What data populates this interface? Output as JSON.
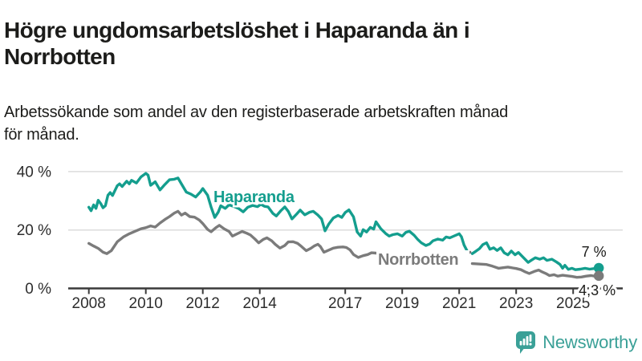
{
  "chart_data": {
    "type": "line",
    "title": "Högre ungdomsarbetslöshet i Haparanda än i Norrbotten",
    "subtitle": "Arbetssökande som andel av den registerbaserade arbetskraften månad för månad.",
    "unit": "%",
    "x_axis": {
      "ticks": [
        2008,
        2010,
        2012,
        2014,
        2017,
        2019,
        2021,
        2023,
        2025
      ],
      "range": [
        2007.3,
        2026.7
      ]
    },
    "y_axis": {
      "ticks": [
        0,
        20,
        40
      ],
      "tick_labels": [
        "0 %",
        "20 %",
        "40 %"
      ],
      "range": [
        0,
        44
      ],
      "grid": true
    },
    "legend_position": "inline-labels",
    "note": "both series have a visible data gap during 2021",
    "series": [
      {
        "name": "Haparanda",
        "color": "#149e8e",
        "end_label": "7 %",
        "end_value": 7.0,
        "points_segments": [
          [
            [
              2008.0,
              27.8
            ],
            [
              2008.08,
              26.6
            ],
            [
              2008.17,
              28.6
            ],
            [
              2008.25,
              27.4
            ],
            [
              2008.33,
              30.2
            ],
            [
              2008.42,
              29.0
            ],
            [
              2008.5,
              27.6
            ],
            [
              2008.58,
              28.3
            ],
            [
              2008.67,
              31.9
            ],
            [
              2008.75,
              32.8
            ],
            [
              2008.83,
              31.8
            ],
            [
              2009.0,
              35.2
            ],
            [
              2009.08,
              35.8
            ],
            [
              2009.17,
              34.9
            ],
            [
              2009.33,
              36.7
            ],
            [
              2009.42,
              35.8
            ],
            [
              2009.5,
              37.0
            ],
            [
              2009.67,
              36.1
            ],
            [
              2009.83,
              38.2
            ],
            [
              2010.0,
              39.4
            ],
            [
              2010.08,
              38.8
            ],
            [
              2010.17,
              35.3
            ],
            [
              2010.33,
              36.5
            ],
            [
              2010.5,
              33.7
            ],
            [
              2010.67,
              35.6
            ],
            [
              2010.83,
              37.2
            ],
            [
              2011.0,
              37.4
            ],
            [
              2011.13,
              37.8
            ],
            [
              2011.25,
              35.8
            ],
            [
              2011.42,
              33.0
            ],
            [
              2011.58,
              32.3
            ],
            [
              2011.75,
              31.3
            ],
            [
              2011.92,
              33.1
            ],
            [
              2012.0,
              34.2
            ],
            [
              2012.17,
              31.9
            ],
            [
              2012.29,
              27.9
            ],
            [
              2012.42,
              24.3
            ],
            [
              2012.54,
              26.1
            ],
            [
              2012.63,
              28.3
            ],
            [
              2012.79,
              27.4
            ],
            [
              2012.92,
              28.6
            ],
            [
              2013.08,
              28.1
            ],
            [
              2013.25,
              27.4
            ],
            [
              2013.42,
              26.2
            ],
            [
              2013.58,
              27.8
            ],
            [
              2013.75,
              28.4
            ],
            [
              2013.92,
              28.0
            ],
            [
              2014.04,
              28.8
            ],
            [
              2014.17,
              28.1
            ],
            [
              2014.29,
              27.9
            ],
            [
              2014.46,
              25.7
            ],
            [
              2014.58,
              24.8
            ],
            [
              2014.75,
              26.7
            ],
            [
              2014.88,
              27.9
            ],
            [
              2015.0,
              26.4
            ],
            [
              2015.13,
              23.8
            ],
            [
              2015.29,
              25.4
            ],
            [
              2015.42,
              26.8
            ],
            [
              2015.58,
              25.2
            ],
            [
              2015.75,
              26.1
            ],
            [
              2015.88,
              26.4
            ],
            [
              2016.04,
              25.1
            ],
            [
              2016.17,
              23.8
            ],
            [
              2016.29,
              19.7
            ],
            [
              2016.42,
              22.0
            ],
            [
              2016.58,
              24.1
            ],
            [
              2016.75,
              25.0
            ],
            [
              2016.88,
              24.3
            ],
            [
              2017.0,
              26.0
            ],
            [
              2017.13,
              26.9
            ],
            [
              2017.29,
              24.5
            ],
            [
              2017.42,
              19.3
            ],
            [
              2017.54,
              17.9
            ],
            [
              2017.63,
              20.1
            ],
            [
              2017.75,
              19.3
            ],
            [
              2017.88,
              20.9
            ],
            [
              2018.0,
              20.3
            ],
            [
              2018.08,
              22.8
            ],
            [
              2018.25,
              20.4
            ],
            [
              2018.42,
              18.8
            ],
            [
              2018.54,
              17.9
            ],
            [
              2018.67,
              18.4
            ],
            [
              2018.83,
              18.7
            ],
            [
              2019.0,
              17.9
            ],
            [
              2019.13,
              19.2
            ],
            [
              2019.25,
              19.6
            ],
            [
              2019.42,
              18.2
            ],
            [
              2019.54,
              16.8
            ],
            [
              2019.67,
              15.6
            ],
            [
              2019.83,
              14.7
            ],
            [
              2019.96,
              15.2
            ],
            [
              2020.08,
              16.3
            ],
            [
              2020.25,
              16.9
            ],
            [
              2020.42,
              16.5
            ],
            [
              2020.54,
              17.6
            ],
            [
              2020.67,
              17.3
            ],
            [
              2020.83,
              18.0
            ],
            [
              2021.0,
              18.7
            ],
            [
              2021.08,
              17.7
            ],
            [
              2021.17,
              14.9
            ],
            [
              2021.29,
              12.6
            ]
          ],
          [
            [
              2021.46,
              11.9
            ],
            [
              2021.58,
              12.7
            ],
            [
              2021.71,
              13.6
            ],
            [
              2021.83,
              15.0
            ],
            [
              2021.96,
              15.6
            ],
            [
              2022.08,
              13.4
            ],
            [
              2022.21,
              13.9
            ],
            [
              2022.33,
              13.0
            ],
            [
              2022.46,
              13.9
            ],
            [
              2022.58,
              12.2
            ],
            [
              2022.71,
              11.5
            ],
            [
              2022.83,
              12.8
            ],
            [
              2022.96,
              11.5
            ],
            [
              2023.08,
              12.3
            ],
            [
              2023.25,
              10.6
            ],
            [
              2023.42,
              8.9
            ],
            [
              2023.54,
              9.7
            ],
            [
              2023.67,
              10.5
            ],
            [
              2023.83,
              10.0
            ],
            [
              2023.96,
              10.5
            ],
            [
              2024.08,
              9.6
            ],
            [
              2024.25,
              10.0
            ],
            [
              2024.42,
              9.0
            ],
            [
              2024.54,
              8.2
            ],
            [
              2024.63,
              6.9
            ],
            [
              2024.71,
              7.9
            ],
            [
              2024.83,
              6.5
            ],
            [
              2024.96,
              6.9
            ],
            [
              2025.08,
              6.4
            ],
            [
              2025.25,
              6.6
            ],
            [
              2025.42,
              6.9
            ],
            [
              2025.58,
              6.6
            ],
            [
              2025.75,
              6.8
            ],
            [
              2025.9,
              7.0
            ]
          ]
        ]
      },
      {
        "name": "Norrbotten",
        "color": "#7b7b7b",
        "end_label": "4,3 %",
        "end_value": 4.3,
        "points_segments": [
          [
            [
              2008.0,
              15.4
            ],
            [
              2008.17,
              14.5
            ],
            [
              2008.33,
              13.7
            ],
            [
              2008.5,
              12.4
            ],
            [
              2008.63,
              11.9
            ],
            [
              2008.79,
              12.9
            ],
            [
              2009.0,
              16.0
            ],
            [
              2009.21,
              17.6
            ],
            [
              2009.42,
              18.7
            ],
            [
              2009.63,
              19.6
            ],
            [
              2009.83,
              20.4
            ],
            [
              2010.0,
              20.8
            ],
            [
              2010.17,
              21.4
            ],
            [
              2010.33,
              21.0
            ],
            [
              2010.5,
              22.4
            ],
            [
              2010.67,
              23.6
            ],
            [
              2010.83,
              24.6
            ],
            [
              2011.0,
              25.8
            ],
            [
              2011.13,
              26.4
            ],
            [
              2011.25,
              25.1
            ],
            [
              2011.38,
              25.8
            ],
            [
              2011.54,
              24.6
            ],
            [
              2011.71,
              24.4
            ],
            [
              2011.88,
              23.4
            ],
            [
              2012.0,
              22.2
            ],
            [
              2012.17,
              20.2
            ],
            [
              2012.29,
              19.4
            ],
            [
              2012.46,
              20.8
            ],
            [
              2012.58,
              21.6
            ],
            [
              2012.75,
              20.4
            ],
            [
              2012.92,
              19.5
            ],
            [
              2013.04,
              17.9
            ],
            [
              2013.21,
              18.7
            ],
            [
              2013.38,
              19.5
            ],
            [
              2013.54,
              18.9
            ],
            [
              2013.67,
              18.3
            ],
            [
              2013.83,
              16.9
            ],
            [
              2013.96,
              15.6
            ],
            [
              2014.13,
              16.8
            ],
            [
              2014.25,
              17.3
            ],
            [
              2014.42,
              16.3
            ],
            [
              2014.54,
              15.1
            ],
            [
              2014.71,
              13.8
            ],
            [
              2014.88,
              14.7
            ],
            [
              2015.0,
              15.9
            ],
            [
              2015.17,
              16.0
            ],
            [
              2015.33,
              15.4
            ],
            [
              2015.46,
              14.4
            ],
            [
              2015.63,
              12.9
            ],
            [
              2015.79,
              13.7
            ],
            [
              2015.92,
              14.6
            ],
            [
              2016.04,
              15.1
            ],
            [
              2016.13,
              14.3
            ],
            [
              2016.25,
              12.4
            ],
            [
              2016.42,
              13.1
            ],
            [
              2016.58,
              13.8
            ],
            [
              2016.75,
              14.1
            ],
            [
              2016.92,
              14.2
            ],
            [
              2017.04,
              14.0
            ],
            [
              2017.17,
              13.2
            ],
            [
              2017.29,
              11.6
            ],
            [
              2017.46,
              10.6
            ],
            [
              2017.63,
              11.2
            ],
            [
              2017.79,
              11.6
            ],
            [
              2017.92,
              12.2
            ],
            [
              2018.08,
              12.1
            ],
            [
              2018.25,
              11.8
            ],
            [
              2018.5,
              11.2
            ],
            [
              2018.75,
              11.5
            ],
            [
              2019.0,
              11.8
            ],
            [
              2019.25,
              11.1
            ],
            [
              2019.5,
              10.5
            ],
            [
              2019.75,
              10.7
            ],
            [
              2020.0,
              11.0
            ],
            [
              2020.25,
              11.4
            ],
            [
              2020.5,
              11.6
            ],
            [
              2020.75,
              11.9
            ],
            [
              2021.0,
              12.1
            ],
            [
              2021.17,
              12.0
            ],
            [
              2021.38,
              12.4
            ]
          ],
          [
            [
              2021.46,
              8.5
            ],
            [
              2021.63,
              8.4
            ],
            [
              2021.79,
              8.3
            ],
            [
              2021.96,
              8.2
            ],
            [
              2022.17,
              7.6
            ],
            [
              2022.38,
              6.9
            ],
            [
              2022.54,
              7.1
            ],
            [
              2022.71,
              7.3
            ],
            [
              2022.88,
              7.0
            ],
            [
              2023.0,
              6.8
            ],
            [
              2023.17,
              6.4
            ],
            [
              2023.33,
              5.6
            ],
            [
              2023.46,
              5.1
            ],
            [
              2023.63,
              5.8
            ],
            [
              2023.79,
              6.3
            ],
            [
              2023.92,
              5.6
            ],
            [
              2024.04,
              5.1
            ],
            [
              2024.17,
              4.4
            ],
            [
              2024.33,
              4.7
            ],
            [
              2024.46,
              4.2
            ],
            [
              2024.63,
              4.5
            ],
            [
              2024.79,
              4.3
            ],
            [
              2024.96,
              4.1
            ],
            [
              2025.13,
              3.8
            ],
            [
              2025.29,
              3.9
            ],
            [
              2025.46,
              4.2
            ],
            [
              2025.63,
              4.4
            ],
            [
              2025.75,
              4.2
            ],
            [
              2025.9,
              4.3
            ]
          ]
        ]
      }
    ]
  },
  "branding": {
    "name": "Newsworthy",
    "color": "#3aa097"
  },
  "colors": {
    "grid": "#dcdcdc",
    "axis": "#3a3a3a",
    "tick_text": "#2d2d2d",
    "heading_text": "#1c1c1a"
  }
}
